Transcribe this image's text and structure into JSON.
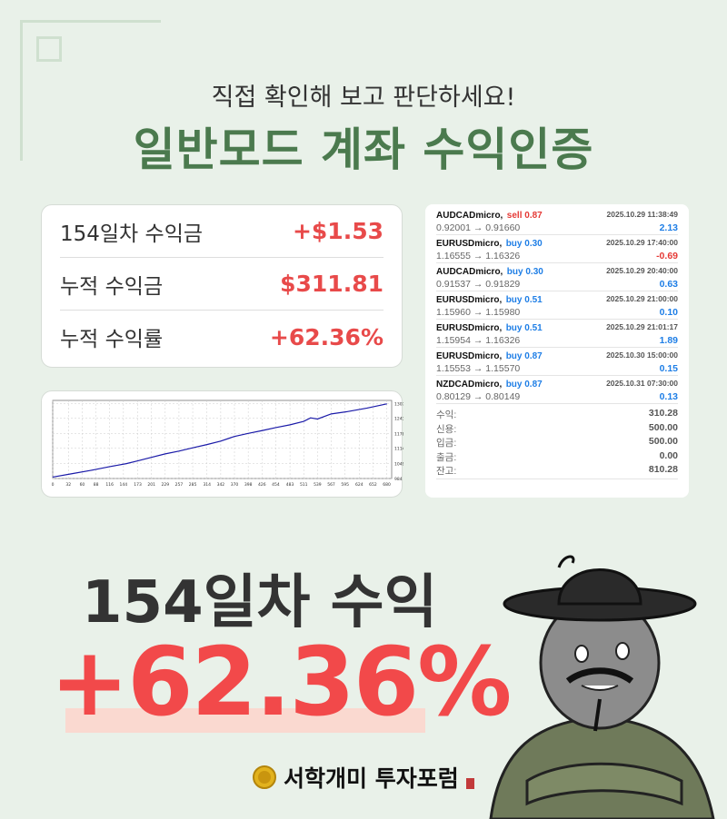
{
  "header": {
    "subtitle": "직접 확인해 보고 판단하세요!",
    "title": "일반모드 계좌 수익인증"
  },
  "stats": [
    {
      "label": "154일차 수익금",
      "value": "+$1.53"
    },
    {
      "label": "누적 수익금",
      "value": "$311.81"
    },
    {
      "label": "누적 수익률",
      "value": "+62.36%"
    }
  ],
  "chart_data": {
    "type": "line",
    "title": "",
    "x_ticks": [
      "0",
      "32",
      "60",
      "88",
      "116",
      "144",
      "173",
      "201",
      "229",
      "257",
      "285",
      "314",
      "342",
      "370",
      "398",
      "426",
      "454",
      "483",
      "511",
      "539",
      "567",
      "595",
      "624",
      "652",
      "680"
    ],
    "y_ticks": [
      "984",
      "1049",
      "1114",
      "1178",
      "1243",
      "1307"
    ],
    "xlim": [
      0,
      690
    ],
    "ylim": [
      984,
      1320
    ],
    "grid": true,
    "color": "#1a1aa8",
    "x": [
      0,
      40,
      80,
      116,
      150,
      173,
      201,
      229,
      257,
      285,
      314,
      342,
      370,
      398,
      426,
      454,
      483,
      511,
      525,
      539,
      567,
      600,
      640,
      680
    ],
    "y": [
      990,
      1005,
      1020,
      1035,
      1048,
      1060,
      1075,
      1090,
      1102,
      1116,
      1130,
      1145,
      1165,
      1178,
      1190,
      1203,
      1215,
      1230,
      1245,
      1240,
      1262,
      1272,
      1287,
      1305
    ]
  },
  "trades": [
    {
      "symbol": "AUDCADmicro,",
      "side": "sell 0.87",
      "type": "sell",
      "time": "2025.10.29 11:38:49",
      "prices": "0.92001 → 0.91660",
      "profit": "2.13",
      "sign": "pos"
    },
    {
      "symbol": "EURUSDmicro,",
      "side": "buy 0.30",
      "type": "buy",
      "time": "2025.10.29 17:40:00",
      "prices": "1.16555 → 1.16326",
      "profit": "-0.69",
      "sign": "neg"
    },
    {
      "symbol": "AUDCADmicro,",
      "side": "buy 0.30",
      "type": "buy",
      "time": "2025.10.29 20:40:00",
      "prices": "0.91537 → 0.91829",
      "profit": "0.63",
      "sign": "pos"
    },
    {
      "symbol": "EURUSDmicro,",
      "side": "buy 0.51",
      "type": "buy",
      "time": "2025.10.29 21:00:00",
      "prices": "1.15960 → 1.15980",
      "profit": "0.10",
      "sign": "pos"
    },
    {
      "symbol": "EURUSDmicro,",
      "side": "buy 0.51",
      "type": "buy",
      "time": "2025.10.29 21:01:17",
      "prices": "1.15954 → 1.16326",
      "profit": "1.89",
      "sign": "pos"
    },
    {
      "symbol": "EURUSDmicro,",
      "side": "buy 0.87",
      "type": "buy",
      "time": "2025.10.30 15:00:00",
      "prices": "1.15553 → 1.15570",
      "profit": "0.15",
      "sign": "pos"
    },
    {
      "symbol": "NZDCADmicro,",
      "side": "buy 0.87",
      "type": "buy",
      "time": "2025.10.31 07:30:00",
      "prices": "0.80129 → 0.80149",
      "profit": "0.13",
      "sign": "pos"
    }
  ],
  "summary": [
    {
      "label": "수익:",
      "value": "310.28"
    },
    {
      "label": "신용:",
      "value": "500.00"
    },
    {
      "label": "입금:",
      "value": "500.00"
    },
    {
      "label": "출금:",
      "value": "0.00"
    },
    {
      "label": "잔고:",
      "value": "810.28"
    }
  ],
  "hero": {
    "days": "154일차 수익",
    "percent": "+62.36%"
  },
  "brand": {
    "name": "서학개미 투자포럼"
  },
  "colors": {
    "accent": "#4b7a4e",
    "red": "#f2494a",
    "blue": "#1e7ee6"
  }
}
